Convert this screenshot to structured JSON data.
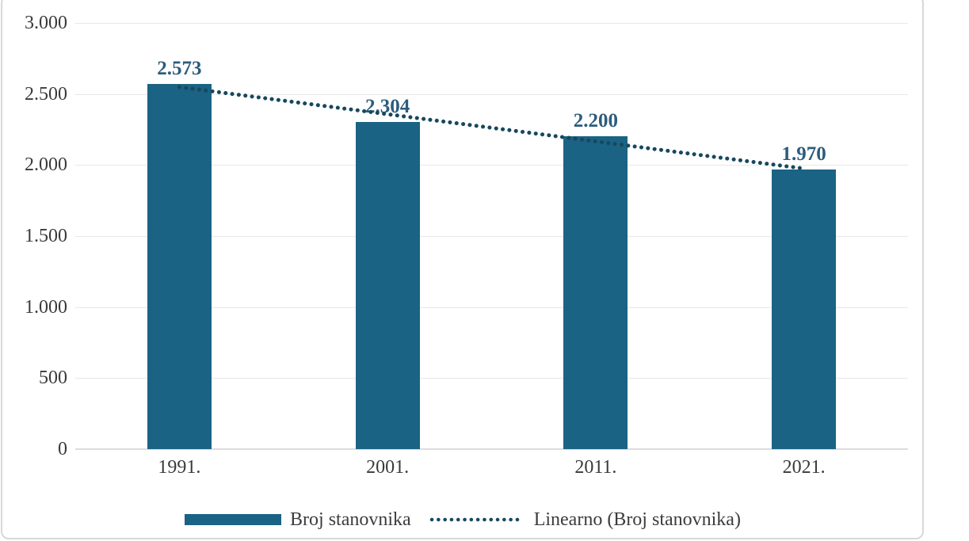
{
  "chart_data": {
    "type": "bar",
    "title": "",
    "categories": [
      "1991.",
      "2001.",
      "2011.",
      "2021."
    ],
    "series": [
      {
        "name": "Broj stanovnika",
        "values": [
          2573,
          2304,
          2200,
          1970
        ],
        "value_labels": [
          "2.573",
          "2.304",
          "2.200",
          "1.970"
        ]
      }
    ],
    "trendline": {
      "name": "Linearno (Broj stanovnika)",
      "style": "dotted",
      "start_value": 2549,
      "end_value": 1975
    },
    "ylim": [
      0,
      3000
    ],
    "yticks": [
      {
        "value": 0,
        "label": "0"
      },
      {
        "value": 500,
        "label": "500"
      },
      {
        "value": 1000,
        "label": "1.000"
      },
      {
        "value": 1500,
        "label": "1.500"
      },
      {
        "value": 2000,
        "label": "2.000"
      },
      {
        "value": 2500,
        "label": "2.500"
      },
      {
        "value": 3000,
        "label": "3.000"
      }
    ],
    "xlabel": "",
    "ylabel": "",
    "grid": "horizontal",
    "legend_position": "bottom",
    "colors": {
      "bar": "#1B6384",
      "trendline": "#17485E",
      "data_label": "#2C5C7D",
      "axis_label": "#3A3A3A",
      "legend_text": "#3C3C3C",
      "gridline": "#E7E7E7",
      "axis_line": "#DCDCDC",
      "chart_border": "#D8D8D8",
      "background": "#FFFFFF"
    }
  }
}
